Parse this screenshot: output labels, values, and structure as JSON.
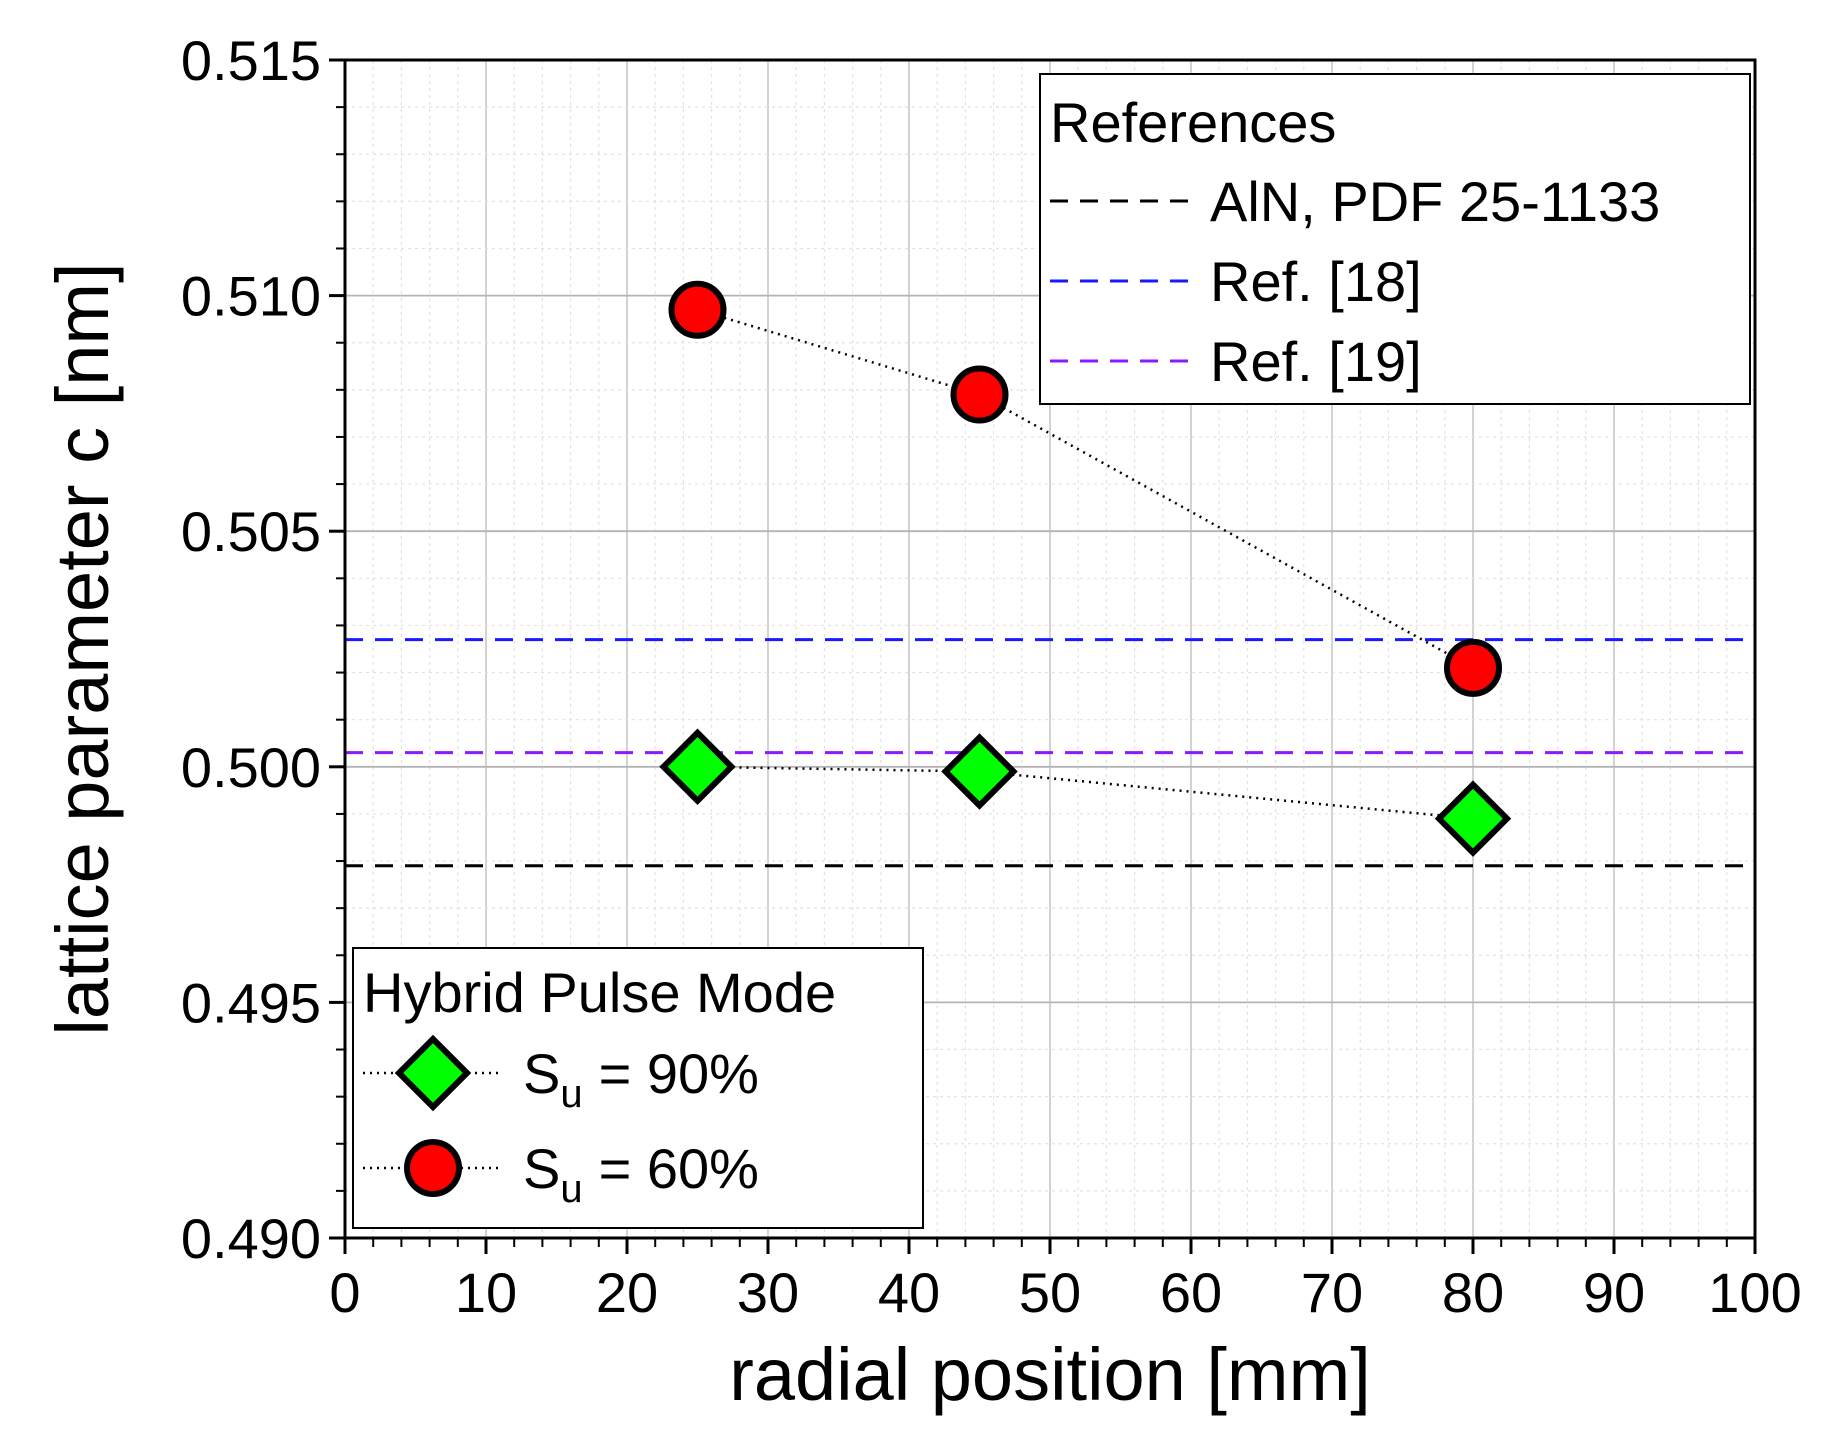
{
  "chart_data": {
    "type": "scatter",
    "xlabel": "radial position [mm]",
    "ylabel": "lattice parameter c [nm]",
    "xlim": [
      0,
      100
    ],
    "ylim": [
      0.49,
      0.515
    ],
    "x_ticks": [
      0,
      10,
      20,
      30,
      40,
      50,
      60,
      70,
      80,
      90,
      100
    ],
    "x_tick_labels": [
      "0",
      "10",
      "20",
      "30",
      "40",
      "50",
      "60",
      "70",
      "80",
      "90",
      "100"
    ],
    "y_ticks": [
      0.49,
      0.495,
      0.5,
      0.505,
      0.51,
      0.515
    ],
    "y_tick_labels": [
      "0.490",
      "0.495",
      "0.500",
      "0.505",
      "0.510",
      "0.515"
    ],
    "grid": true,
    "series": [
      {
        "name": "S_u = 90%",
        "legend_label": "= 90%",
        "marker": "diamond",
        "color": "#00ff00",
        "x": [
          25,
          45,
          80
        ],
        "values": [
          0.5,
          0.4999,
          0.4989
        ]
      },
      {
        "name": "S_u = 60%",
        "legend_label": "= 60%",
        "marker": "circle",
        "color": "#ff0000",
        "x": [
          25,
          45,
          80
        ],
        "values": [
          0.5097,
          0.5079,
          0.5021
        ]
      }
    ],
    "reference_lines": [
      {
        "label": "AlN, PDF 25-1133",
        "value": 0.4979,
        "color": "#000000"
      },
      {
        "label": "Ref. [18]",
        "value": 0.5027,
        "color": "#1a1aff"
      },
      {
        "label": "Ref. [19]",
        "value": 0.5003,
        "color": "#8a1aff"
      }
    ],
    "legend_references_title": "References",
    "legend_series_title": "Hybrid Pulse Mode",
    "legend_symbol": "S",
    "legend_subscript": "u"
  }
}
